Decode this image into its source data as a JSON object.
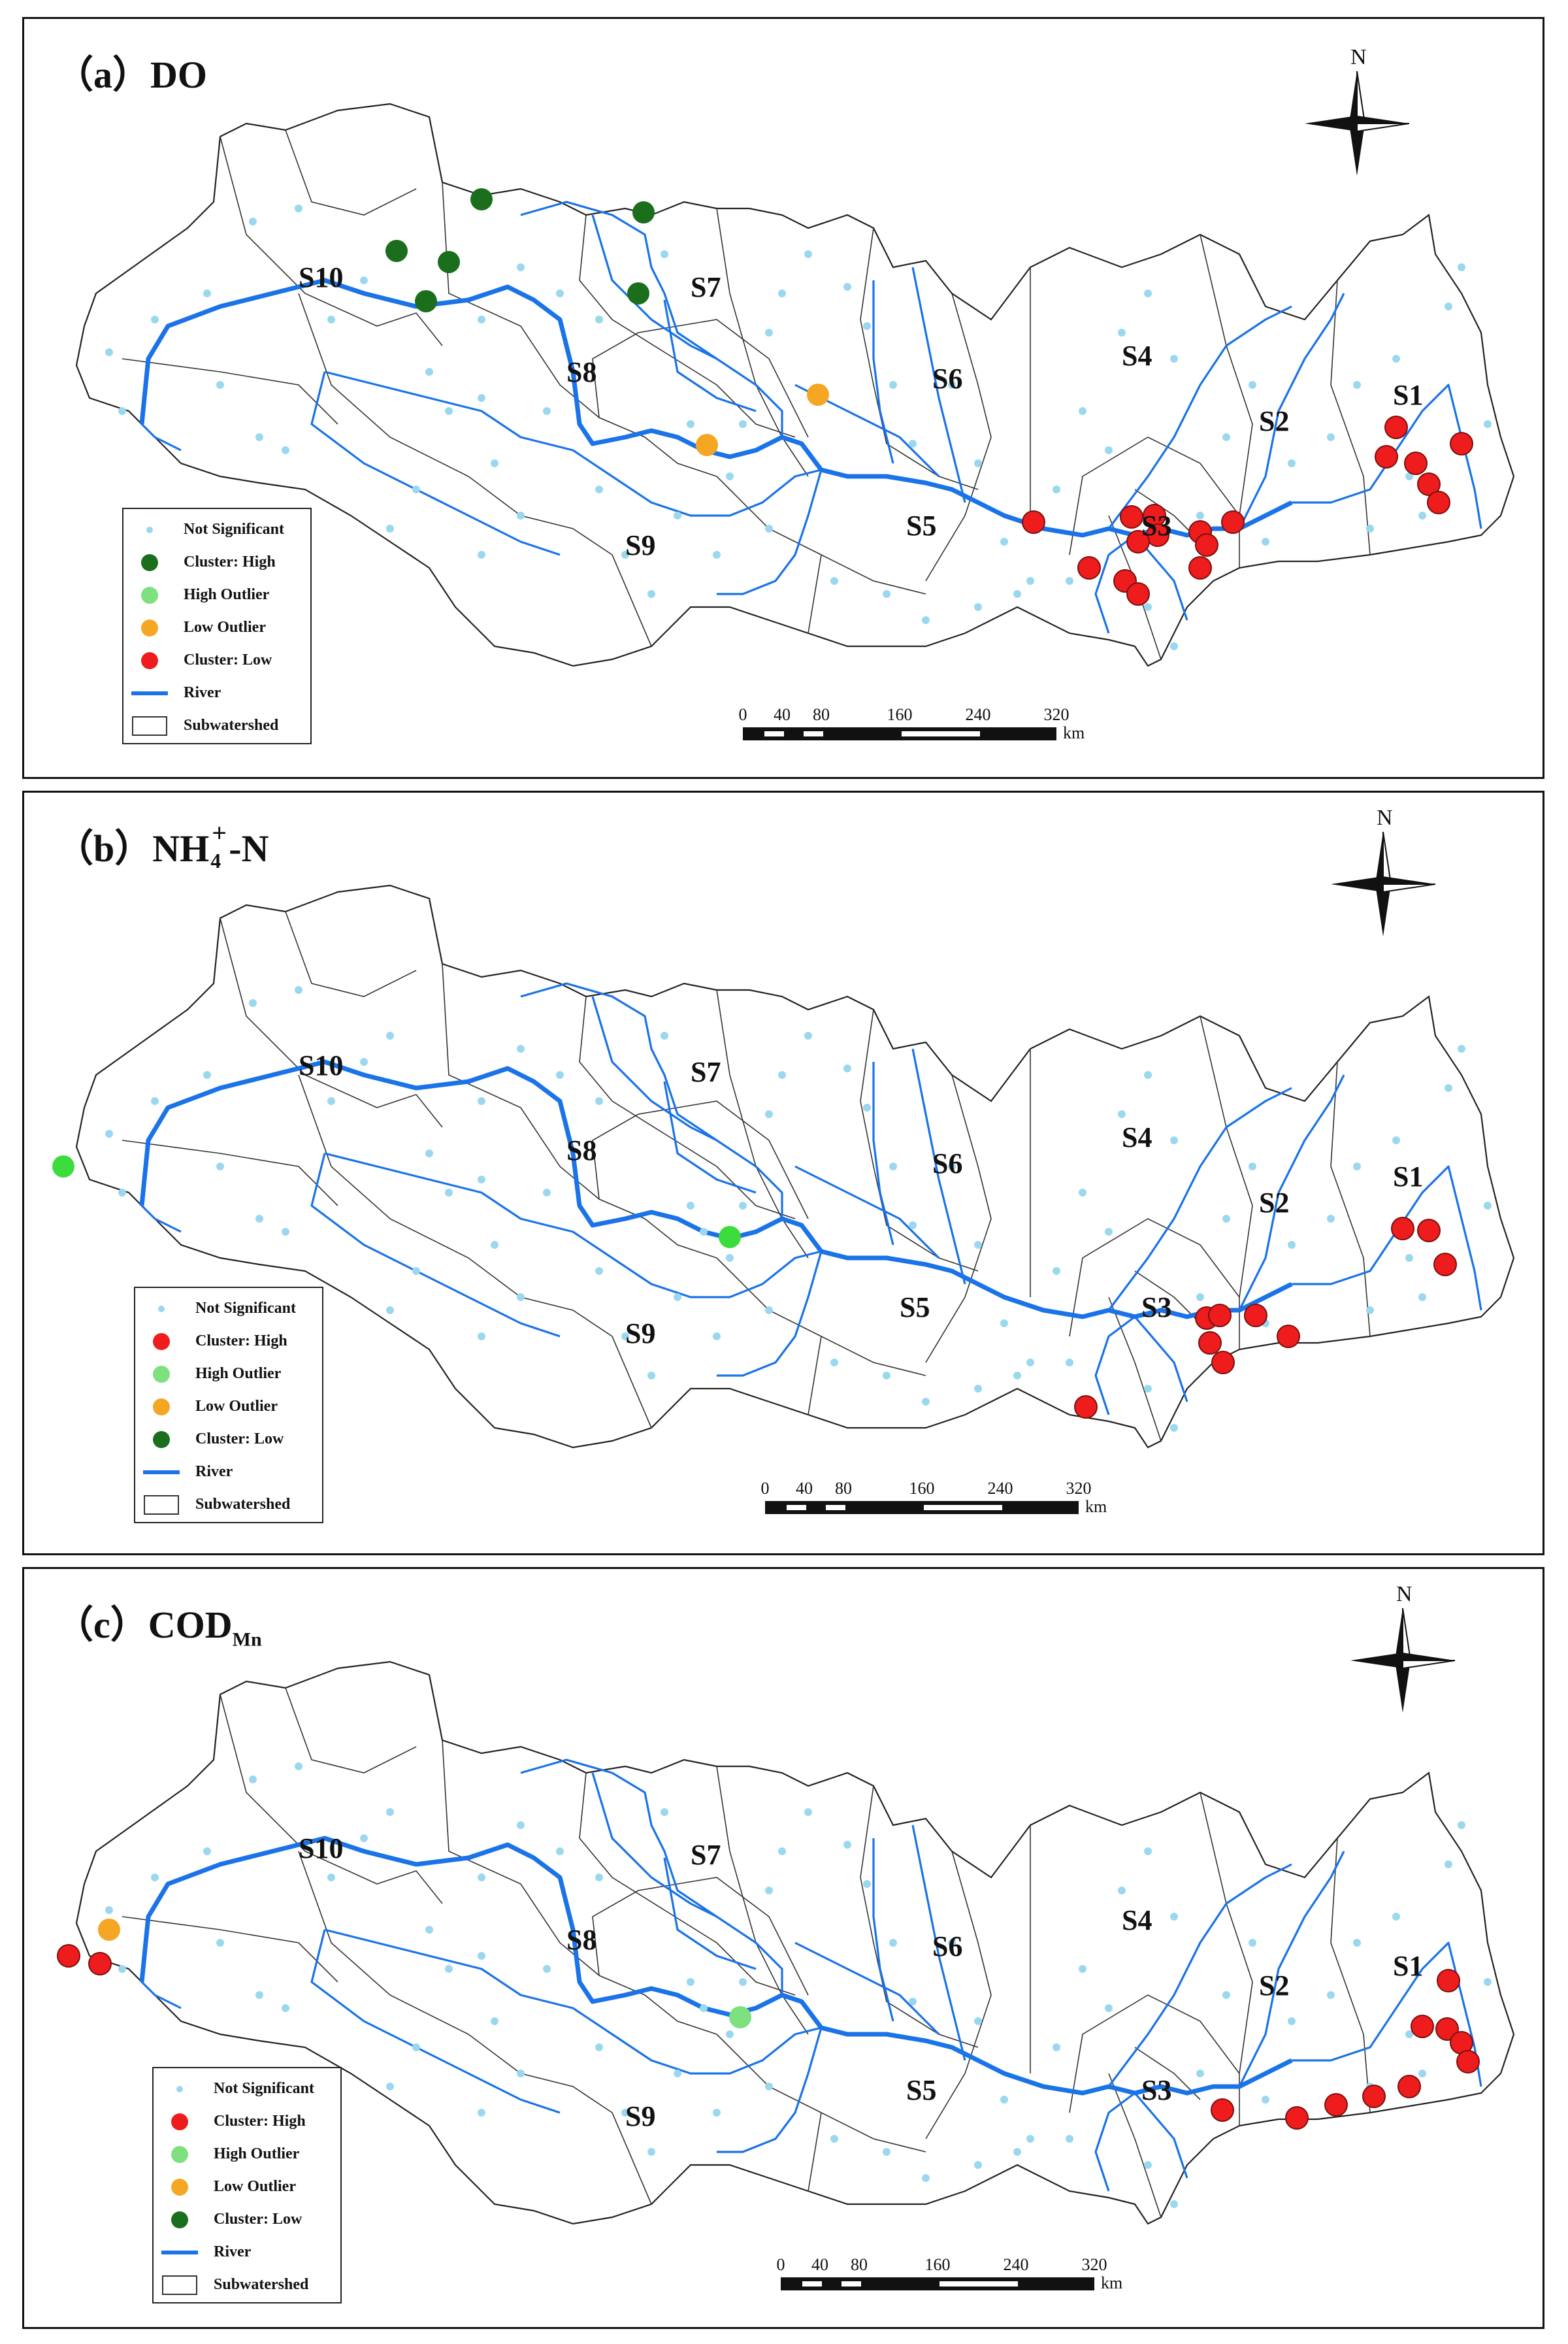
{
  "panels": [
    {
      "id": "a",
      "title_prefix": "（a）DO",
      "legend": [
        {
          "label": "Not Significant",
          "color": "#9bd8f0",
          "kind": "small"
        },
        {
          "label": "Cluster: High",
          "color": "#1b6e1b",
          "kind": "dot"
        },
        {
          "label": "High Outlier",
          "color": "#7ee07e",
          "kind": "dot"
        },
        {
          "label": "Low Outlier",
          "color": "#f5a623",
          "kind": "dot"
        },
        {
          "label": "Cluster: Low",
          "color": "#ee1c1c",
          "kind": "dot"
        },
        {
          "label": "River",
          "color": "#1a73e8",
          "kind": "line"
        },
        {
          "label": "Subwatershed",
          "color": "#333333",
          "kind": "box"
        }
      ]
    },
    {
      "id": "b",
      "title_prefix": "（b）NH",
      "title_sub": "4",
      "title_sup": "+",
      "title_suffix": "-N",
      "legend": [
        {
          "label": "Not Significant",
          "color": "#9bd8f0",
          "kind": "small"
        },
        {
          "label": "Cluster: High",
          "color": "#ee1c1c",
          "kind": "dot"
        },
        {
          "label": "High Outlier",
          "color": "#7ee07e",
          "kind": "dot"
        },
        {
          "label": "Low Outlier",
          "color": "#f5a623",
          "kind": "dot"
        },
        {
          "label": "Cluster: Low",
          "color": "#1b6e1b",
          "kind": "dot"
        },
        {
          "label": "River",
          "color": "#1a73e8",
          "kind": "line"
        },
        {
          "label": "Subwatershed",
          "color": "#333333",
          "kind": "box"
        }
      ]
    },
    {
      "id": "c",
      "title_prefix": "（c）COD",
      "title_sub": "Mn",
      "legend": [
        {
          "label": "Not Significant",
          "color": "#9bd8f0",
          "kind": "small"
        },
        {
          "label": "Cluster: High",
          "color": "#ee1c1c",
          "kind": "dot"
        },
        {
          "label": "High Outlier",
          "color": "#7ee07e",
          "kind": "dot"
        },
        {
          "label": "Low Outlier",
          "color": "#f5a623",
          "kind": "dot"
        },
        {
          "label": "Cluster: Low",
          "color": "#1b6e1b",
          "kind": "dot"
        },
        {
          "label": "River",
          "color": "#1a73e8",
          "kind": "line"
        },
        {
          "label": "Subwatershed",
          "color": "#333333",
          "kind": "box"
        }
      ]
    }
  ],
  "subwatershed_labels": [
    "S1",
    "S2",
    "S3",
    "S4",
    "S5",
    "S6",
    "S7",
    "S8",
    "S9",
    "S10"
  ],
  "scalebar": {
    "ticks": [
      "0",
      "40",
      "80",
      "160",
      "240",
      "320"
    ],
    "unit": "km"
  },
  "north_label": "N"
}
